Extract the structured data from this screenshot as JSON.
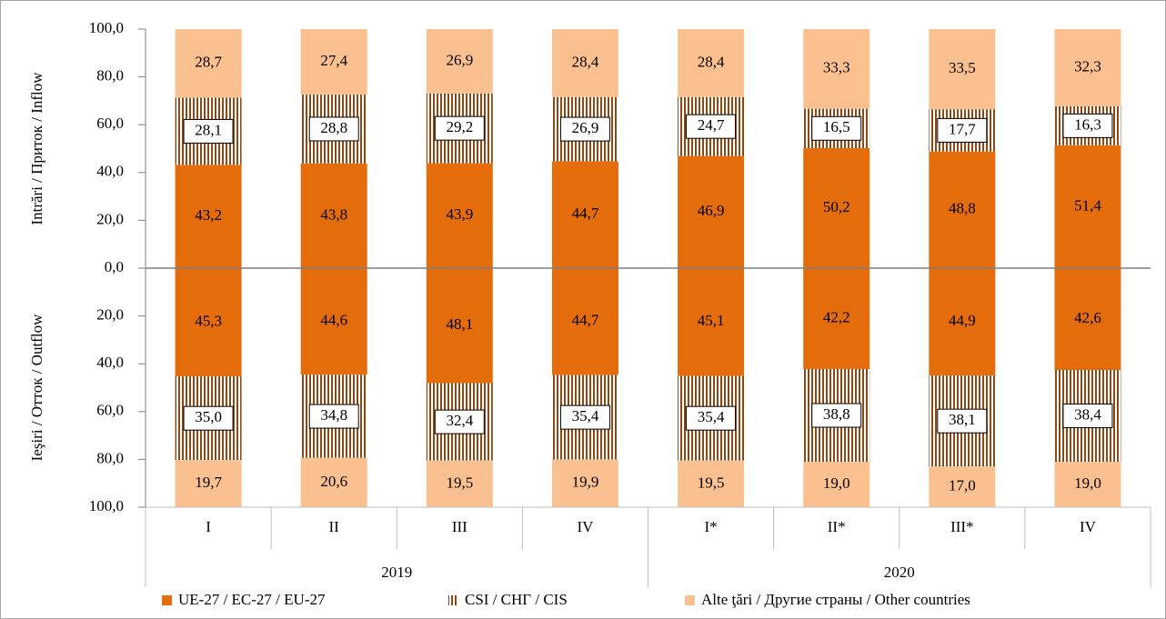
{
  "chart_data": [
    {
      "type": "bar",
      "stacked": true,
      "ylabel": "Intrări / Приток / Inflow",
      "ylim": [
        0,
        100
      ],
      "yticks": [
        {
          "value": 0,
          "label": "0,0"
        },
        {
          "value": 20,
          "label": "20,0"
        },
        {
          "value": 40,
          "label": "40,0"
        },
        {
          "value": 60,
          "label": "60,0"
        },
        {
          "value": 80,
          "label": "80,0"
        },
        {
          "value": 100,
          "label": "100,0"
        }
      ],
      "series": [
        {
          "name": "UE-27 / ЕС-27 / EU-27",
          "color": "#e46c0a",
          "values": [
            43.2,
            43.8,
            43.9,
            44.7,
            46.9,
            50.2,
            48.8,
            51.4
          ],
          "value_labels": [
            "43,2",
            "43,8",
            "43,9",
            "44,7",
            "46,9",
            "50,2",
            "48,8",
            "51,4"
          ]
        },
        {
          "name": "CSI / СНГ / CIS",
          "color": "#8b4a14",
          "values": [
            28.1,
            28.8,
            29.2,
            26.9,
            24.7,
            16.5,
            17.7,
            16.3
          ],
          "value_labels": [
            "28,1",
            "28,8",
            "29,2",
            "26,9",
            "24,7",
            "16,5",
            "17,7",
            "16,3"
          ]
        },
        {
          "name": "Alte ţări / Другие страны / Other countries",
          "color": "#fac090",
          "values": [
            28.7,
            27.4,
            26.9,
            28.4,
            28.4,
            33.3,
            33.5,
            32.3
          ],
          "value_labels": [
            "28,7",
            "27,4",
            "26,9",
            "28,4",
            "28,4",
            "33,3",
            "33,5",
            "32,3"
          ]
        }
      ]
    },
    {
      "type": "bar",
      "stacked": true,
      "inverted": true,
      "ylabel": "Ieşiri / Отток / Outflow",
      "ylim": [
        0,
        100
      ],
      "yticks": [
        {
          "value": 20,
          "label": "20,0"
        },
        {
          "value": 40,
          "label": "40,0"
        },
        {
          "value": 60,
          "label": "60,0"
        },
        {
          "value": 80,
          "label": "80,0"
        },
        {
          "value": 100,
          "label": "100,0"
        }
      ],
      "categories": [
        "I",
        "II",
        "III",
        "IV",
        "I*",
        "II*",
        "III*",
        "IV"
      ],
      "groups": [
        {
          "label": "2019",
          "span": 4
        },
        {
          "label": "2020",
          "span": 4
        }
      ],
      "series": [
        {
          "values": [
            45.3,
            44.6,
            48.1,
            44.7,
            45.1,
            42.2,
            44.9,
            42.6
          ],
          "value_labels": [
            "45,3",
            "44,6",
            "48,1",
            "44,7",
            "45,1",
            "42,2",
            "44,9",
            "42,6"
          ]
        },
        {
          "values": [
            35.0,
            34.8,
            32.4,
            35.4,
            35.4,
            38.8,
            38.1,
            38.4
          ],
          "value_labels": [
            "35,0",
            "34,8",
            "32,4",
            "35,4",
            "35,4",
            "38,8",
            "38,1",
            "38,4"
          ]
        },
        {
          "values": [
            19.7,
            20.6,
            19.5,
            19.9,
            19.5,
            19.0,
            17.0,
            19.0
          ],
          "value_labels": [
            "19,7",
            "20,6",
            "19,5",
            "19,9",
            "19,5",
            "19,0",
            "17,0",
            "19,0"
          ]
        }
      ]
    }
  ]
}
